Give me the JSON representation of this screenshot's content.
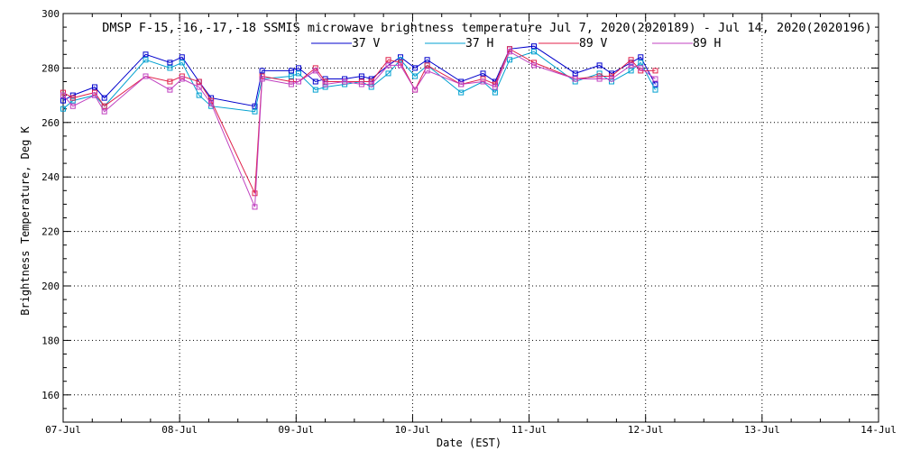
{
  "chart_data": {
    "type": "line",
    "title": "DMSP F-15,-16,-17,-18 SSMIS microwave brightness temperature Jul  7, 2020(2020189) - Jul 14, 2020(2020196)",
    "xlabel": "Date (EST)",
    "ylabel": "Brightness Temperature, Deg K",
    "xlim": [
      "07-Jul 00:00",
      "14-Jul 00:00"
    ],
    "ylim": [
      150,
      300
    ],
    "x_ticks": [
      "07-Jul",
      "08-Jul",
      "09-Jul",
      "10-Jul",
      "11-Jul",
      "12-Jul",
      "13-Jul",
      "14-Jul"
    ],
    "y_ticks": [
      160,
      180,
      200,
      220,
      240,
      260,
      280,
      300
    ],
    "grid": true,
    "legend_position": "top-center",
    "marker": "square",
    "series": [
      {
        "name": "37 V",
        "color": "#0000cc",
        "points": [
          [
            "07-Jul 00:00",
            268
          ],
          [
            "07-Jul 02:00",
            270
          ],
          [
            "07-Jul 06:30",
            273
          ],
          [
            "07-Jul 08:30",
            269
          ],
          [
            "07-Jul 17:00",
            285
          ],
          [
            "07-Jul 22:00",
            282
          ],
          [
            "08-Jul 00:30",
            284
          ],
          [
            "08-Jul 04:00",
            275
          ],
          [
            "08-Jul 06:30",
            269
          ],
          [
            "08-Jul 15:30",
            266
          ],
          [
            "08-Jul 17:00",
            279
          ],
          [
            "08-Jul 23:00",
            279
          ],
          [
            "09-Jul 00:30",
            280
          ],
          [
            "09-Jul 04:00",
            275
          ],
          [
            "09-Jul 06:00",
            276
          ],
          [
            "09-Jul 10:00",
            276
          ],
          [
            "09-Jul 13:30",
            277
          ],
          [
            "09-Jul 15:30",
            276
          ],
          [
            "09-Jul 19:00",
            281
          ],
          [
            "09-Jul 21:30",
            284
          ],
          [
            "10-Jul 00:30",
            280
          ],
          [
            "10-Jul 03:00",
            283
          ],
          [
            "10-Jul 10:00",
            275
          ],
          [
            "10-Jul 14:30",
            278
          ],
          [
            "10-Jul 17:00",
            275
          ],
          [
            "10-Jul 20:00",
            287
          ],
          [
            "11-Jul 01:00",
            288
          ],
          [
            "11-Jul 09:30",
            278
          ],
          [
            "11-Jul 14:30",
            281
          ],
          [
            "11-Jul 17:00",
            278
          ],
          [
            "11-Jul 21:00",
            282
          ],
          [
            "11-Jul 23:00",
            284
          ],
          [
            "12-Jul 02:00",
            274
          ]
        ]
      },
      {
        "name": "37 H",
        "color": "#00a0d0",
        "points": [
          [
            "07-Jul 00:00",
            265
          ],
          [
            "07-Jul 02:00",
            268
          ],
          [
            "07-Jul 06:30",
            270
          ],
          [
            "07-Jul 08:30",
            266
          ],
          [
            "07-Jul 17:00",
            283
          ],
          [
            "07-Jul 22:00",
            280
          ],
          [
            "08-Jul 00:30",
            282
          ],
          [
            "08-Jul 04:00",
            270
          ],
          [
            "08-Jul 06:30",
            266
          ],
          [
            "08-Jul 15:30",
            264
          ],
          [
            "08-Jul 17:00",
            276
          ],
          [
            "08-Jul 23:00",
            277
          ],
          [
            "09-Jul 00:30",
            278
          ],
          [
            "09-Jul 04:00",
            272
          ],
          [
            "09-Jul 06:00",
            273
          ],
          [
            "09-Jul 10:00",
            274
          ],
          [
            "09-Jul 13:30",
            275
          ],
          [
            "09-Jul 15:30",
            273
          ],
          [
            "09-Jul 19:00",
            278
          ],
          [
            "09-Jul 21:30",
            283
          ],
          [
            "10-Jul 00:30",
            277
          ],
          [
            "10-Jul 03:00",
            281
          ],
          [
            "10-Jul 10:00",
            271
          ],
          [
            "10-Jul 14:30",
            275
          ],
          [
            "10-Jul 17:00",
            271
          ],
          [
            "10-Jul 20:00",
            283
          ],
          [
            "11-Jul 01:00",
            286
          ],
          [
            "11-Jul 09:30",
            275
          ],
          [
            "11-Jul 14:30",
            278
          ],
          [
            "11-Jul 17:00",
            275
          ],
          [
            "11-Jul 21:00",
            279
          ],
          [
            "11-Jul 23:00",
            282
          ],
          [
            "12-Jul 02:00",
            272
          ]
        ]
      },
      {
        "name": "89 V",
        "color": "#e0204a",
        "points": [
          [
            "07-Jul 00:00",
            271
          ],
          [
            "07-Jul 02:00",
            269
          ],
          [
            "07-Jul 06:30",
            271
          ],
          [
            "07-Jul 08:30",
            266
          ],
          [
            "07-Jul 17:00",
            277
          ],
          [
            "07-Jul 22:00",
            275
          ],
          [
            "08-Jul 00:30",
            277
          ],
          [
            "08-Jul 04:00",
            275
          ],
          [
            "08-Jul 06:30",
            268
          ],
          [
            "08-Jul 15:30",
            234
          ],
          [
            "08-Jul 17:00",
            277
          ],
          [
            "08-Jul 23:00",
            275
          ],
          [
            "09-Jul 00:30",
            275
          ],
          [
            "09-Jul 04:00",
            280
          ],
          [
            "09-Jul 06:00",
            275
          ],
          [
            "09-Jul 10:00",
            275
          ],
          [
            "09-Jul 13:30",
            275
          ],
          [
            "09-Jul 15:30",
            275
          ],
          [
            "09-Jul 19:00",
            283
          ],
          [
            "09-Jul 21:30",
            282
          ],
          [
            "10-Jul 00:30",
            272
          ],
          [
            "10-Jul 03:00",
            281
          ],
          [
            "10-Jul 10:00",
            274
          ],
          [
            "10-Jul 14:30",
            276
          ],
          [
            "10-Jul 17:00",
            274
          ],
          [
            "10-Jul 20:00",
            287
          ],
          [
            "11-Jul 01:00",
            282
          ],
          [
            "11-Jul 09:30",
            276
          ],
          [
            "11-Jul 14:30",
            277
          ],
          [
            "11-Jul 17:00",
            277
          ],
          [
            "11-Jul 21:00",
            283
          ],
          [
            "11-Jul 23:00",
            279
          ],
          [
            "12-Jul 02:00",
            279
          ]
        ]
      },
      {
        "name": "89 H",
        "color": "#c040c0",
        "points": [
          [
            "07-Jul 00:00",
            270
          ],
          [
            "07-Jul 02:00",
            266
          ],
          [
            "07-Jul 06:30",
            270
          ],
          [
            "07-Jul 08:30",
            264
          ],
          [
            "07-Jul 17:00",
            277
          ],
          [
            "07-Jul 22:00",
            272
          ],
          [
            "08-Jul 00:30",
            276
          ],
          [
            "08-Jul 04:00",
            273
          ],
          [
            "08-Jul 06:30",
            267
          ],
          [
            "08-Jul 15:30",
            229
          ],
          [
            "08-Jul 17:00",
            276
          ],
          [
            "08-Jul 23:00",
            274
          ],
          [
            "09-Jul 00:30",
            275
          ],
          [
            "09-Jul 04:00",
            279
          ],
          [
            "09-Jul 06:00",
            274
          ],
          [
            "09-Jul 10:00",
            275
          ],
          [
            "09-Jul 13:30",
            274
          ],
          [
            "09-Jul 15:30",
            274
          ],
          [
            "09-Jul 19:00",
            281
          ],
          [
            "09-Jul 21:30",
            281
          ],
          [
            "10-Jul 00:30",
            272
          ],
          [
            "10-Jul 03:00",
            279
          ],
          [
            "10-Jul 10:00",
            274
          ],
          [
            "10-Jul 14:30",
            275
          ],
          [
            "10-Jul 17:00",
            273
          ],
          [
            "10-Jul 20:00",
            286
          ],
          [
            "11-Jul 01:00",
            281
          ],
          [
            "11-Jul 09:30",
            276
          ],
          [
            "11-Jul 14:30",
            276
          ],
          [
            "11-Jul 17:00",
            276
          ],
          [
            "11-Jul 21:00",
            281
          ],
          [
            "11-Jul 23:00",
            280
          ],
          [
            "12-Jul 02:00",
            276
          ]
        ]
      }
    ]
  }
}
